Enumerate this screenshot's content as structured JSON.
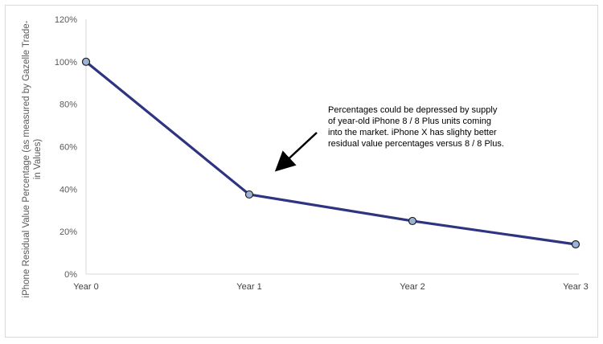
{
  "chart_data": {
    "type": "line",
    "categories": [
      "Year 0",
      "Year 1",
      "Year 2",
      "Year 3"
    ],
    "series": [
      {
        "name": "",
        "values": [
          1.0,
          0.375,
          0.25,
          0.14
        ]
      }
    ],
    "ylabel": "iPhone Residual Value Percentage (as measured by Gazelle Trade-in Values)",
    "ylabel_lines": [
      "iPhone Residual Value Percentage (as measured by Gazelle Trade-",
      "in Values)"
    ],
    "xlabel": "",
    "ylim": [
      0,
      1.2
    ],
    "yticks": [
      0,
      0.2,
      0.4,
      0.6,
      0.8,
      1.0,
      1.2
    ],
    "ytick_labels": [
      "0%",
      "20%",
      "40%",
      "60%",
      "80%",
      "100%",
      "120%"
    ],
    "grid": false,
    "legend": "none",
    "line_color": "#2e3480",
    "marker_fill": "#9db3d6",
    "annotation": {
      "lines": [
        "Percentages could be depressed by supply",
        "of year-old iPhone 8 / 8 Plus units coming",
        "into the market. iPhone X has slighty better",
        "residual value percentages versus 8 / 8 Plus."
      ]
    }
  }
}
